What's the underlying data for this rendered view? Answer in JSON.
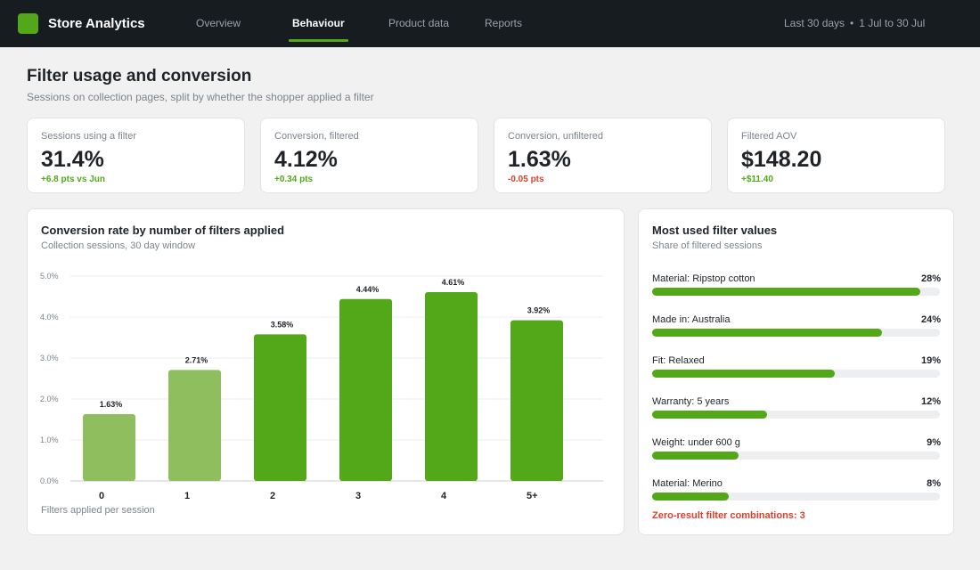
{
  "app": {
    "title": "Store Analytics"
  },
  "nav": {
    "tabs": [
      {
        "label": "Overview"
      },
      {
        "label": "Behaviour"
      },
      {
        "label": "Product data"
      },
      {
        "label": "Reports"
      }
    ],
    "active_tab": "Behaviour"
  },
  "date_range": {
    "preset": "Last 30 days",
    "range": "1 Jul to 30 Jul"
  },
  "page": {
    "title": "Filter usage and conversion",
    "subtitle": "Sessions on collection pages, split by whether the shopper applied a filter"
  },
  "kpis": [
    {
      "label": "Sessions using a filter",
      "value": "31.4%",
      "delta": "+6.8 pts vs Jun",
      "trend": "positive"
    },
    {
      "label": "Conversion, filtered",
      "value": "4.12%",
      "delta": "+0.34 pts",
      "trend": "positive"
    },
    {
      "label": "Conversion, unfiltered",
      "value": "1.63%",
      "delta": "-0.05 pts",
      "trend": "negative"
    },
    {
      "label": "Filtered AOV",
      "value": "$148.20",
      "delta": "+$11.40",
      "trend": "positive"
    }
  ],
  "chart_panel": {
    "title": "Conversion rate by number of filters applied",
    "subtitle": "Collection sessions, 30 day window"
  },
  "chart_data": {
    "type": "bar",
    "title": "Conversion rate by number of filters applied",
    "subtitle": "Collection sessions, 30 day window",
    "xlabel": "Filters applied per session",
    "ylabel": "",
    "categories": [
      "0",
      "1",
      "2",
      "3",
      "4",
      "5+"
    ],
    "values": [
      1.63,
      2.71,
      3.58,
      4.44,
      4.61,
      3.92
    ],
    "data_labels": [
      "1.63%",
      "2.71%",
      "3.58%",
      "4.44%",
      "4.61%",
      "3.92%"
    ],
    "yticks": [
      "0.0%",
      "1.0%",
      "2.0%",
      "3.0%",
      "4.0%",
      "5.0%"
    ],
    "ylim": [
      0,
      5
    ],
    "grid": true,
    "colors": [
      "#8fbe5f",
      "#8fbe5f",
      "#52a818",
      "#52a818",
      "#52a818",
      "#52a818"
    ]
  },
  "filters_panel": {
    "title": "Most used filter values",
    "subtitle": "Share of filtered sessions",
    "items": [
      {
        "label": "Material: Ripstop cotton",
        "pct_label": "28%",
        "share": 0.28
      },
      {
        "label": "Made in: Australia",
        "pct_label": "24%",
        "share": 0.24
      },
      {
        "label": "Fit: Relaxed",
        "pct_label": "19%",
        "share": 0.19
      },
      {
        "label": "Warranty: 5 years",
        "pct_label": "12%",
        "share": 0.12
      },
      {
        "label": "Weight: under 600 g",
        "pct_label": "9%",
        "share": 0.09
      },
      {
        "label": "Material: Merino",
        "pct_label": "8%",
        "share": 0.08
      }
    ],
    "scale_max": 0.3,
    "zero_result_note": "Zero-result filter combinations: 3"
  },
  "colors": {
    "accent": "#52a818",
    "accent_light": "#8fbe5f",
    "negative": "#d9412f",
    "topbar": "#171c21"
  }
}
